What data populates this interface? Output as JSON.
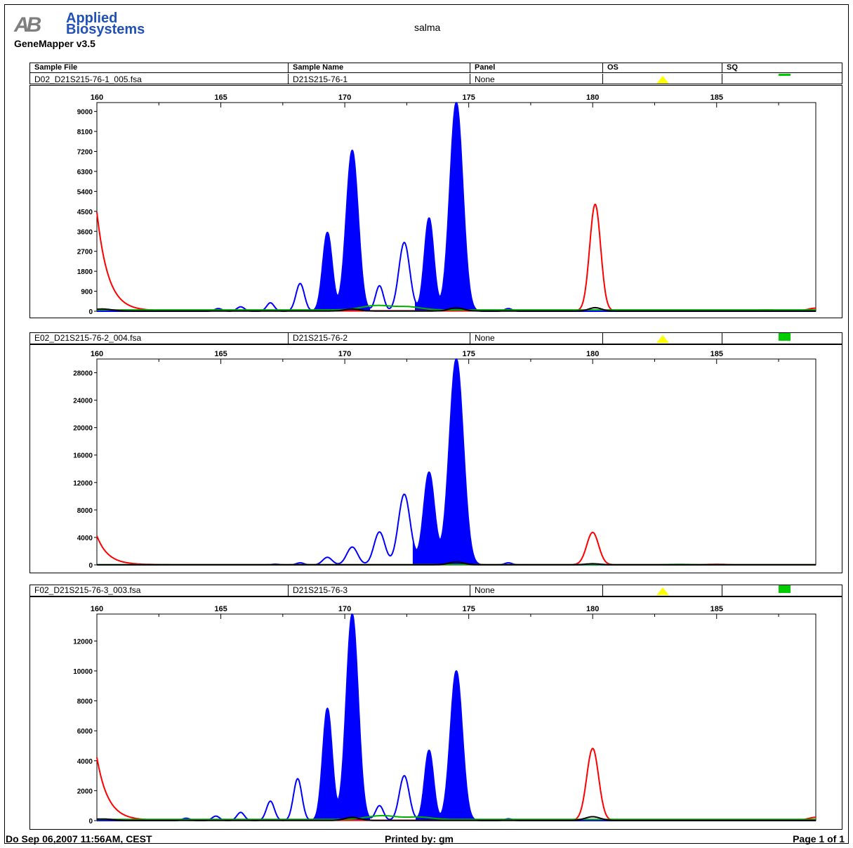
{
  "header": {
    "logo_line1": "Applied",
    "logo_line2": "Biosystems",
    "app_name": "GeneMapper  v3.5",
    "project": "salma"
  },
  "columns": [
    "Sample File",
    "Sample Name",
    "Panel",
    "OS",
    "SQ"
  ],
  "samples": [
    {
      "file": "D02_D21S215-76-1_005.fsa",
      "name": "D21S215-76-1",
      "panel": "None",
      "os": "yellow-triangle-icon",
      "sq": "green-square-icon"
    },
    {
      "file": "E02_D21S215-76-2_004.fsa",
      "name": "D21S215-76-2",
      "panel": "None",
      "os": "yellow-triangle-icon",
      "sq": "green-square-icon"
    },
    {
      "file": "F02_D21S215-76-3_003.fsa",
      "name": "D21S215-76-3",
      "panel": "None",
      "os": "yellow-triangle-icon",
      "sq": "green-square-icon"
    }
  ],
  "colors": {
    "blue": "#0000ff",
    "red": "#ff0000",
    "green": "#00b000",
    "black": "#000000",
    "os": "#ffff00",
    "sq": "#00cc00"
  },
  "chart_data": [
    {
      "type": "line",
      "xlim": [
        160,
        189
      ],
      "xticks": [
        "160",
        "165",
        "170",
        "175",
        "180",
        "185"
      ],
      "ylim": [
        0,
        9400
      ],
      "yticks": [
        "9000",
        "8100",
        "7200",
        "6300",
        "5400",
        "4500",
        "3600",
        "2700",
        "1800",
        "900",
        "0"
      ],
      "series": [
        {
          "color": "blue",
          "peaks": [
            [
              164.9,
              120,
              0.15,
              0
            ],
            [
              165.8,
              200,
              0.15,
              0
            ],
            [
              167.0,
              380,
              0.15,
              0
            ],
            [
              168.2,
              1250,
              0.17,
              0
            ],
            [
              169.3,
              3550,
              0.19,
              1
            ],
            [
              170.3,
              7250,
              0.24,
              1
            ],
            [
              171.4,
              1150,
              0.16,
              0
            ],
            [
              172.4,
              3100,
              0.22,
              0
            ],
            [
              173.4,
              4200,
              0.19,
              1
            ],
            [
              174.5,
              9400,
              0.26,
              1
            ],
            [
              176.6,
              120,
              0.15,
              0
            ]
          ]
        },
        {
          "color": "red",
          "base": 20,
          "leading": 4450,
          "peaks": [
            [
              180.1,
              4800,
              0.22,
              0
            ],
            [
              187.0,
              40,
              0.4,
              0
            ],
            [
              189.0,
              120,
              0.3,
              0
            ]
          ]
        },
        {
          "color": "green",
          "base": 60,
          "peaks": [
            [
              171.3,
              200,
              0.6,
              0
            ],
            [
              172.6,
              130,
              0.5,
              0
            ]
          ]
        },
        {
          "color": "black",
          "base": 10,
          "peaks": [
            [
              160.2,
              90,
              0.4,
              0
            ],
            [
              170.3,
              90,
              0.3,
              0
            ],
            [
              174.5,
              140,
              0.3,
              0
            ],
            [
              180.1,
              150,
              0.25,
              0
            ]
          ]
        }
      ]
    },
    {
      "type": "line",
      "xlim": [
        160,
        189
      ],
      "xticks": [
        "160",
        "165",
        "170",
        "175",
        "180",
        "185"
      ],
      "ylim": [
        0,
        30000
      ],
      "yticks": [
        "28000",
        "24000",
        "20000",
        "16000",
        "12000",
        "8000",
        "4000",
        "0"
      ],
      "series": [
        {
          "color": "blue",
          "peaks": [
            [
              167.2,
              100,
              0.15,
              0
            ],
            [
              168.2,
              300,
              0.15,
              0
            ],
            [
              169.3,
              1100,
              0.19,
              0
            ],
            [
              170.3,
              2600,
              0.22,
              0
            ],
            [
              171.4,
              4800,
              0.22,
              0
            ],
            [
              172.4,
              10300,
              0.24,
              0
            ],
            [
              173.4,
              13500,
              0.22,
              1
            ],
            [
              174.5,
              30000,
              0.28,
              1
            ],
            [
              176.6,
              300,
              0.15,
              0
            ]
          ]
        },
        {
          "color": "red",
          "base": 30,
          "leading": 4200,
          "peaks": [
            [
              180.0,
              4700,
              0.24,
              0
            ],
            [
              185.0,
              60,
              0.3,
              0
            ]
          ]
        },
        {
          "color": "green",
          "base": 20,
          "peaks": [
            [
              183.5,
              50,
              0.5,
              0
            ]
          ]
        },
        {
          "color": "black",
          "base": 10,
          "peaks": [
            [
              174.5,
              400,
              0.3,
              0
            ],
            [
              180.0,
              150,
              0.3,
              0
            ]
          ]
        }
      ]
    },
    {
      "type": "line",
      "xlim": [
        160,
        189
      ],
      "xticks": [
        "160",
        "165",
        "170",
        "175",
        "180",
        "185"
      ],
      "ylim": [
        0,
        13800
      ],
      "yticks": [
        "12000",
        "10000",
        "8000",
        "6000",
        "4000",
        "2000",
        "0"
      ],
      "series": [
        {
          "color": "blue",
          "peaks": [
            [
              163.6,
              160,
              0.15,
              0
            ],
            [
              164.8,
              300,
              0.15,
              0
            ],
            [
              165.8,
              550,
              0.15,
              0
            ],
            [
              167.0,
              1300,
              0.16,
              0
            ],
            [
              168.1,
              2800,
              0.17,
              0
            ],
            [
              169.3,
              7500,
              0.19,
              1
            ],
            [
              170.3,
              13800,
              0.24,
              1
            ],
            [
              171.4,
              1000,
              0.16,
              0
            ],
            [
              172.4,
              3000,
              0.2,
              0
            ],
            [
              173.4,
              4700,
              0.18,
              1
            ],
            [
              174.5,
              10000,
              0.24,
              1
            ],
            [
              176.6,
              120,
              0.15,
              0
            ]
          ]
        },
        {
          "color": "red",
          "base": 20,
          "leading": 4200,
          "peaks": [
            [
              180.0,
              4800,
              0.24,
              0
            ],
            [
              189.0,
              200,
              0.3,
              0
            ]
          ]
        },
        {
          "color": "green",
          "base": 80,
          "peaks": [
            [
              171.5,
              250,
              0.6,
              0
            ],
            [
              173.0,
              150,
              0.5,
              0
            ]
          ]
        },
        {
          "color": "black",
          "base": 10,
          "peaks": [
            [
              160.2,
              100,
              0.4,
              0
            ],
            [
              170.3,
              200,
              0.3,
              0
            ],
            [
              180.0,
              250,
              0.3,
              0
            ]
          ]
        }
      ]
    }
  ],
  "footer": {
    "date": "Do Sep 06,2007 11:56AM, CEST",
    "printed_by": "Printed by: gm",
    "page": "Page 1 of 1"
  }
}
